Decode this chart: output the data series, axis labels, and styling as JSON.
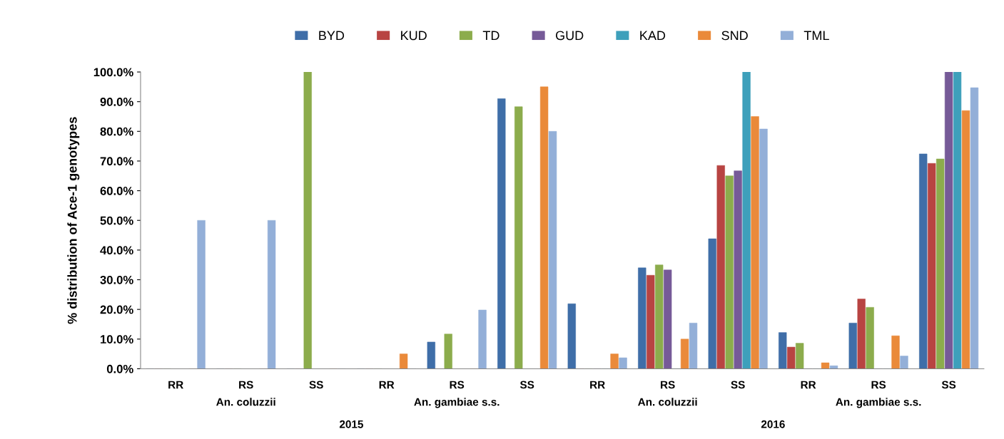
{
  "chart_data": {
    "type": "bar",
    "ylabel": "% distribution of Ace-1 genotypes",
    "categories": [
      "RR",
      "RS",
      "SS",
      "RR",
      "RS",
      "SS",
      "RR",
      "RS",
      "SS",
      "RR",
      "RS",
      "SS"
    ],
    "series": [
      {
        "name": "BYD",
        "color": "#3f6ea8",
        "values": [
          0,
          0,
          0,
          0,
          9,
          91,
          21.9,
          34,
          43.8,
          12.2,
          15.4,
          72.4
        ]
      },
      {
        "name": "KUD",
        "color": "#b84442",
        "values": [
          0,
          0,
          0,
          0,
          0,
          0,
          0,
          31.5,
          68.5,
          7.3,
          23.5,
          69.2
        ]
      },
      {
        "name": "TD",
        "color": "#8cac4c",
        "values": [
          0,
          0,
          100,
          0,
          11.7,
          88.3,
          0,
          35,
          65,
          8.6,
          20.7,
          70.7
        ]
      },
      {
        "name": "GUD",
        "color": "#765a98",
        "values": [
          null,
          null,
          null,
          null,
          null,
          null,
          0,
          33.3,
          66.7,
          0,
          0,
          100
        ]
      },
      {
        "name": "KAD",
        "color": "#3ea0bb",
        "values": [
          null,
          null,
          null,
          null,
          null,
          null,
          0,
          0,
          100,
          0,
          0,
          100
        ]
      },
      {
        "name": "SND",
        "color": "#ea8a3a",
        "values": [
          0,
          0,
          0,
          5,
          0,
          95,
          5,
          10,
          85,
          2,
          11.1,
          87
        ]
      },
      {
        "name": "TML",
        "color": "#93afd8",
        "values": [
          50,
          50,
          0,
          0,
          19.8,
          80,
          3.7,
          15.4,
          80.8,
          1,
          4.3,
          94.7
        ]
      }
    ],
    "annotations": [
      "An. coluzzii",
      "An. gambiae s.s.",
      "An. coluzzii",
      "An. gambiae s.s.",
      "2015",
      "2016"
    ],
    "ylim": [
      0,
      100
    ],
    "yticks": [
      {
        "value": 0,
        "label": "0.0%"
      },
      {
        "value": 10,
        "label": "10.0%"
      },
      {
        "value": 20,
        "label": "20.0%"
      },
      {
        "value": 30,
        "label": "30.0%"
      },
      {
        "value": 40,
        "label": "40.0%"
      },
      {
        "value": 50,
        "label": "50.0%"
      },
      {
        "value": 60,
        "label": "60.0%"
      },
      {
        "value": 70,
        "label": "70.0%"
      },
      {
        "value": 80,
        "label": "80.0%"
      },
      {
        "value": 90,
        "label": "90.0%"
      },
      {
        "value": 100,
        "label": "100.0%"
      }
    ],
    "legend": "top",
    "grid": false
  }
}
